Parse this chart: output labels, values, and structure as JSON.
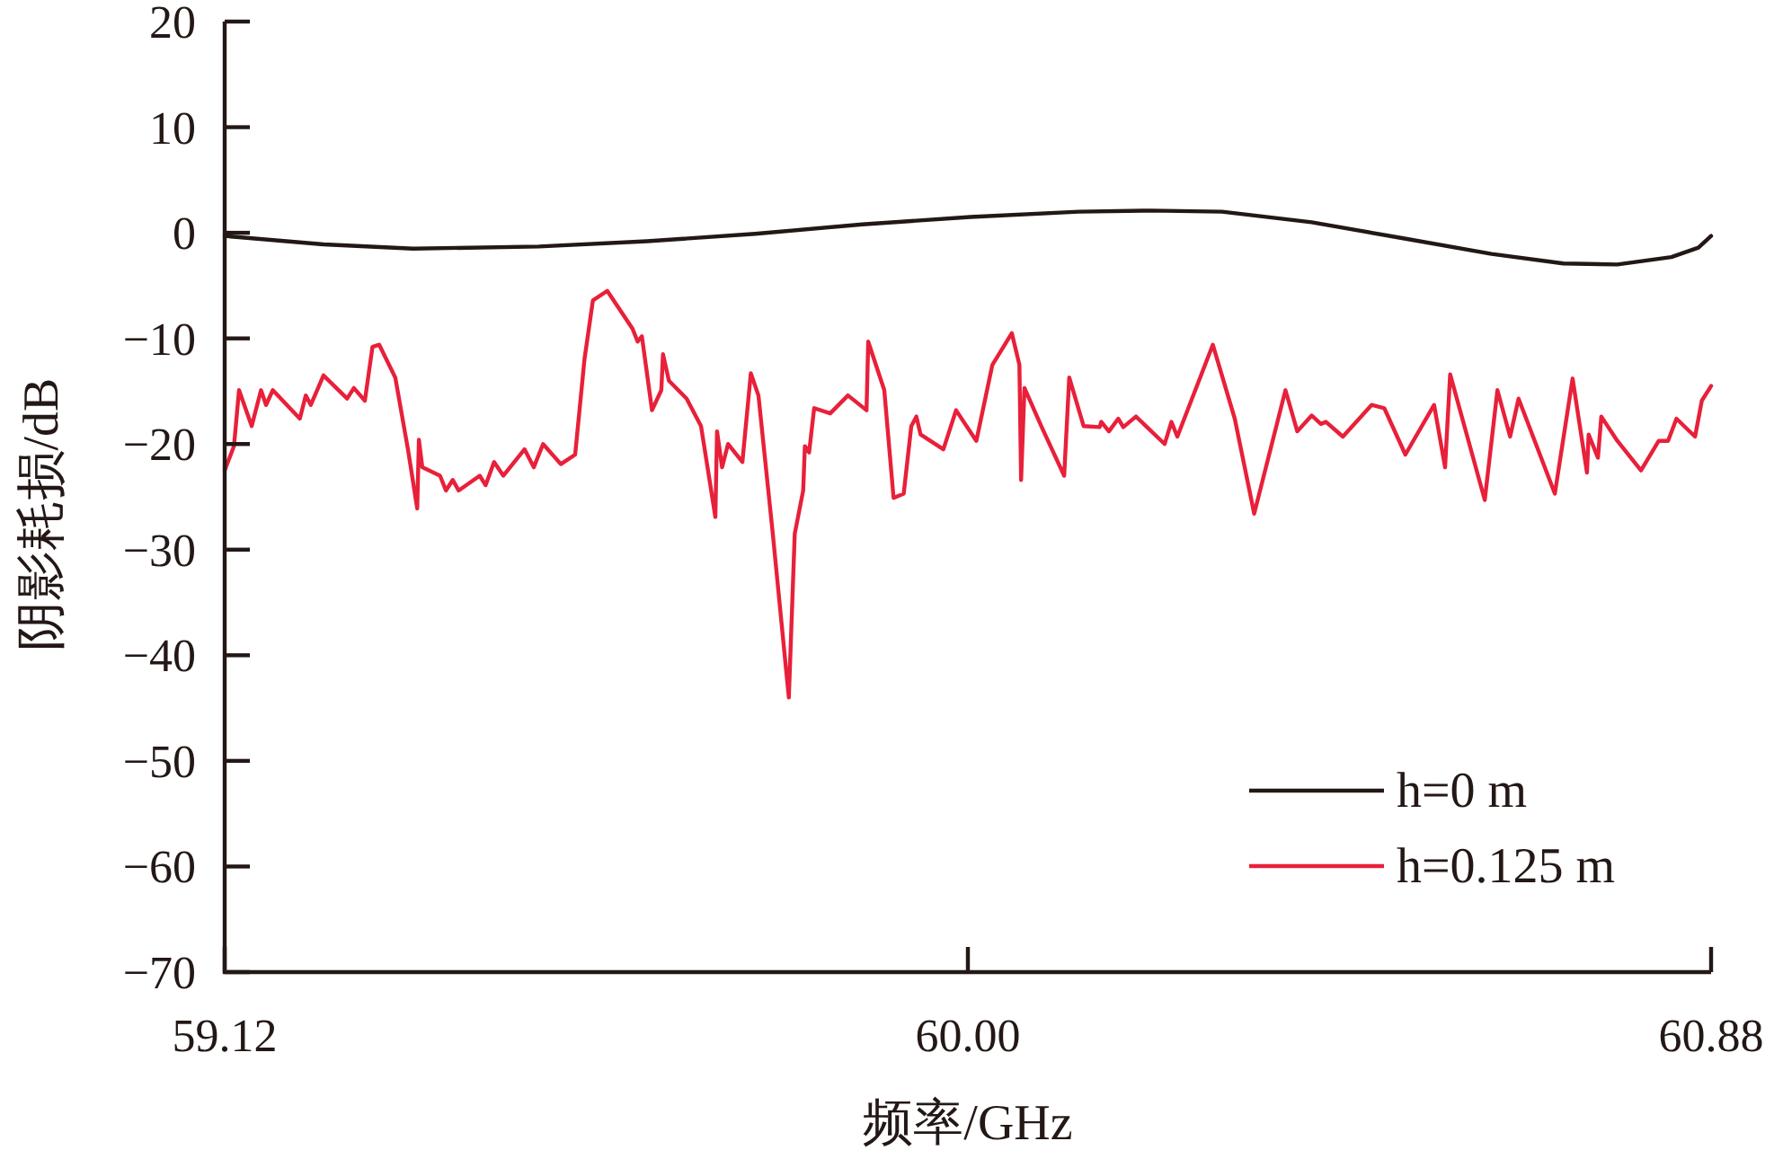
{
  "chart_data": {
    "type": "line",
    "xlabel": "频率/GHz",
    "ylabel": "阴影耗损/dB",
    "xlim": [
      59.12,
      60.88
    ],
    "xticks": [
      59.12,
      {
        "value": 60,
        "label": "60.00"
      },
      60.88
    ],
    "ylim": [
      -70,
      20
    ],
    "yticks": [
      {
        "value": -70,
        "label": "−70"
      },
      {
        "value": -60,
        "label": "−60"
      },
      {
        "value": -50,
        "label": "−50"
      },
      {
        "value": -40,
        "label": "−40"
      },
      {
        "value": -30,
        "label": "−30"
      },
      {
        "value": -20,
        "label": "−20"
      },
      {
        "value": -10,
        "label": "−10"
      },
      0,
      10,
      20
    ],
    "legend": "bottom right",
    "series": [
      {
        "name": "h=0 m",
        "color": "#231815",
        "x": [
          59.12,
          59.237,
          59.343,
          59.492,
          59.62,
          59.748,
          59.875,
          60.003,
          60.131,
          60.216,
          60.301,
          60.407,
          60.514,
          60.62,
          60.705,
          60.769,
          60.833,
          60.865,
          60.88
        ],
        "values": [
          -0.3,
          -1.1,
          -1.5,
          -1.3,
          -0.8,
          -0.1,
          0.8,
          1.5,
          2.0,
          2.1,
          2.0,
          1.0,
          -0.5,
          -2.0,
          -2.9,
          -3.0,
          -2.3,
          -1.4,
          -0.3
        ]
      },
      {
        "name": "h=0.125 m",
        "color": "#e8203a",
        "x": [
          59.12,
          59.131,
          59.137,
          59.152,
          59.163,
          59.169,
          59.177,
          59.209,
          59.216,
          59.222,
          59.237,
          59.265,
          59.273,
          59.286,
          59.295,
          59.303,
          59.322,
          59.337,
          59.348,
          59.35,
          59.354,
          59.375,
          59.382,
          59.39,
          59.397,
          59.422,
          59.429,
          59.439,
          59.45,
          59.475,
          59.486,
          59.497,
          59.518,
          59.535,
          59.546,
          59.556,
          59.573,
          59.603,
          59.609,
          59.614,
          59.626,
          59.637,
          59.639,
          59.646,
          59.667,
          59.684,
          59.701,
          59.703,
          59.709,
          59.716,
          59.733,
          59.743,
          59.752,
          59.769,
          59.788,
          59.795,
          59.805,
          59.807,
          59.812,
          59.818,
          59.837,
          59.858,
          59.88,
          59.882,
          59.901,
          59.912,
          59.924,
          59.933,
          59.939,
          59.944,
          59.971,
          59.986,
          60.01,
          60.029,
          60.052,
          60.061,
          60.063,
          60.067,
          60.088,
          60.114,
          60.12,
          60.137,
          60.156,
          60.158,
          60.167,
          60.178,
          60.184,
          60.199,
          60.233,
          60.241,
          60.248,
          60.29,
          60.316,
          60.339,
          60.376,
          60.39,
          60.407,
          60.418,
          60.424,
          60.444,
          60.478,
          60.493,
          60.518,
          60.552,
          60.565,
          60.571,
          60.612,
          60.627,
          60.642,
          60.652,
          60.695,
          60.716,
          60.733,
          60.735,
          60.746,
          60.75,
          60.769,
          60.797,
          60.818,
          60.829,
          60.839,
          60.861,
          60.869,
          60.88
        ],
        "values": [
          -22.5,
          -20.2,
          -14.9,
          -18.3,
          -14.9,
          -16.3,
          -14.9,
          -17.6,
          -15.4,
          -16.3,
          -13.5,
          -15.7,
          -14.7,
          -15.9,
          -10.8,
          -10.6,
          -13.7,
          -20.5,
          -26.1,
          -19.6,
          -22.2,
          -23.0,
          -24.4,
          -23.4,
          -24.4,
          -23.0,
          -23.9,
          -21.7,
          -23.0,
          -20.5,
          -22.2,
          -20.0,
          -21.9,
          -21.0,
          -12.0,
          -6.4,
          -5.5,
          -9.1,
          -10.3,
          -9.8,
          -16.8,
          -14.9,
          -11.5,
          -14.0,
          -15.7,
          -18.3,
          -26.9,
          -18.8,
          -22.2,
          -20.0,
          -21.7,
          -13.3,
          -15.4,
          -28.5,
          -44.0,
          -28.5,
          -24.4,
          -20.2,
          -20.8,
          -16.6,
          -17.1,
          -15.4,
          -16.8,
          -10.3,
          -14.9,
          -25.1,
          -24.7,
          -18.3,
          -17.4,
          -19.1,
          -20.5,
          -16.8,
          -19.7,
          -12.5,
          -9.5,
          -12.5,
          -23.4,
          -14.7,
          -18.5,
          -23.0,
          -13.7,
          -18.3,
          -18.4,
          -17.9,
          -18.8,
          -17.6,
          -18.4,
          -17.4,
          -20.0,
          -17.9,
          -19.3,
          -10.6,
          -17.6,
          -26.6,
          -14.9,
          -18.8,
          -17.3,
          -18.1,
          -17.9,
          -19.3,
          -16.3,
          -16.6,
          -21.0,
          -16.3,
          -22.2,
          -13.4,
          -25.3,
          -14.9,
          -19.3,
          -15.7,
          -24.7,
          -13.8,
          -22.7,
          -19.1,
          -21.3,
          -17.4,
          -19.7,
          -22.5,
          -19.7,
          -19.7,
          -17.6,
          -19.3,
          -15.9,
          -14.5
        ]
      }
    ]
  }
}
